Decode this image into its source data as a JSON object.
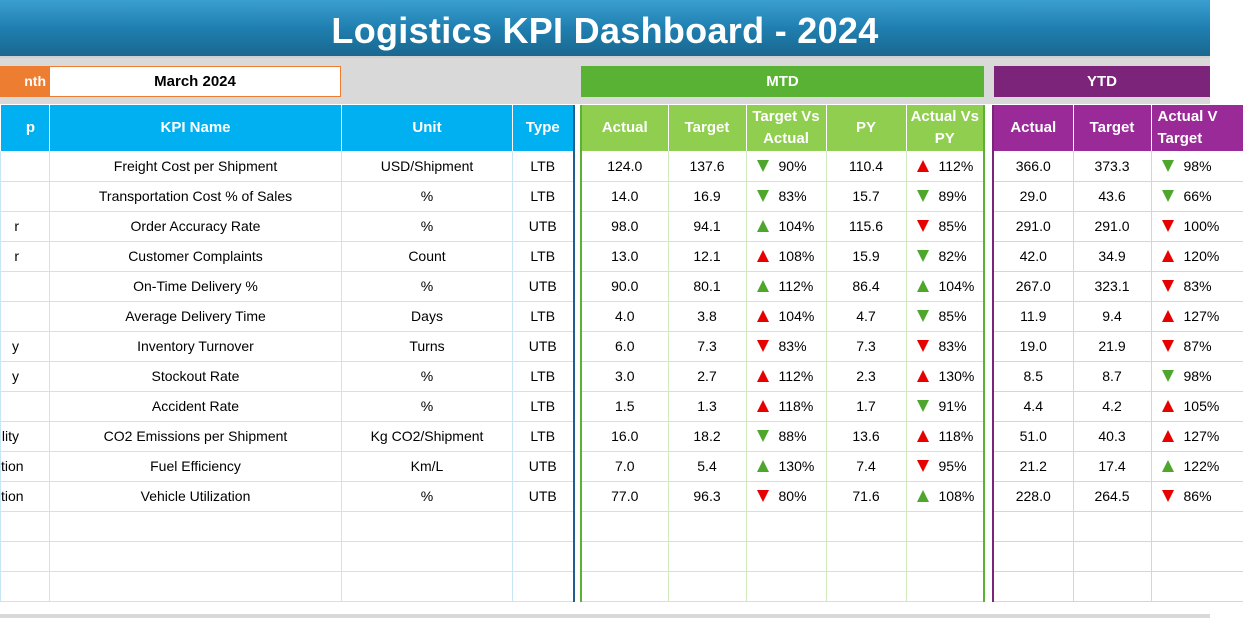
{
  "title": "Logistics KPI Dashboard - 2024",
  "month_selector": {
    "label": "nth",
    "value": "March 2024"
  },
  "mtd_label": "MTD",
  "ytd_label": "YTD",
  "colors": {
    "accent_blue": "#00b0f0",
    "mtd_green": "#59b233",
    "ytd_purple": "#7b2479",
    "month_orange": "#ed7d31",
    "up_red": "#e60000",
    "down_green": "#4ea72c"
  },
  "left_headers": {
    "group": "p",
    "kpi": "KPI Name",
    "unit": "Unit",
    "type": "Type"
  },
  "mtd_headers": {
    "actual": "Actual",
    "target": "Target",
    "tva": "Target Vs\nActual",
    "py": "PY",
    "apy": "Actual Vs\nPY"
  },
  "ytd_headers": {
    "actual": "Actual",
    "target": "Target",
    "tva": "Actual V\nTarget"
  },
  "rows": [
    {
      "group": "",
      "kpi": "Freight Cost per Shipment",
      "unit": "USD/Shipment",
      "type": "LTB",
      "mtd": {
        "actual": "124.0",
        "target": "137.6",
        "tva": "90%",
        "tva_icon": "down-green-icon",
        "py": "110.4",
        "apy": "112%",
        "apy_icon": "up-red-icon"
      },
      "ytd": {
        "actual": "366.0",
        "target": "373.3",
        "tva": "98%",
        "tva_icon": "down-green-icon"
      }
    },
    {
      "group": "",
      "kpi": "Transportation Cost % of Sales",
      "unit": "%",
      "type": "LTB",
      "mtd": {
        "actual": "14.0",
        "target": "16.9",
        "tva": "83%",
        "tva_icon": "down-green-icon",
        "py": "15.7",
        "apy": "89%",
        "apy_icon": "down-green-icon"
      },
      "ytd": {
        "actual": "29.0",
        "target": "43.6",
        "tva": "66%",
        "tva_icon": "down-green-icon"
      }
    },
    {
      "group": "r",
      "kpi": "Order Accuracy Rate",
      "unit": "%",
      "type": "UTB",
      "mtd": {
        "actual": "98.0",
        "target": "94.1",
        "tva": "104%",
        "tva_icon": "up-green-icon",
        "py": "115.6",
        "apy": "85%",
        "apy_icon": "down-red-icon"
      },
      "ytd": {
        "actual": "291.0",
        "target": "291.0",
        "tva": "100%",
        "tva_icon": "down-red-icon"
      }
    },
    {
      "group": "r",
      "kpi": "Customer Complaints",
      "unit": "Count",
      "type": "LTB",
      "mtd": {
        "actual": "13.0",
        "target": "12.1",
        "tva": "108%",
        "tva_icon": "up-red-icon",
        "py": "15.9",
        "apy": "82%",
        "apy_icon": "down-green-icon"
      },
      "ytd": {
        "actual": "42.0",
        "target": "34.9",
        "tva": "120%",
        "tva_icon": "up-red-icon"
      }
    },
    {
      "group": "",
      "kpi": "On-Time Delivery %",
      "unit": "%",
      "type": "UTB",
      "mtd": {
        "actual": "90.0",
        "target": "80.1",
        "tva": "112%",
        "tva_icon": "up-green-icon",
        "py": "86.4",
        "apy": "104%",
        "apy_icon": "up-green-icon"
      },
      "ytd": {
        "actual": "267.0",
        "target": "323.1",
        "tva": "83%",
        "tva_icon": "down-red-icon"
      }
    },
    {
      "group": "",
      "kpi": "Average Delivery Time",
      "unit": "Days",
      "type": "LTB",
      "mtd": {
        "actual": "4.0",
        "target": "3.8",
        "tva": "104%",
        "tva_icon": "up-red-icon",
        "py": "4.7",
        "apy": "85%",
        "apy_icon": "down-green-icon"
      },
      "ytd": {
        "actual": "11.9",
        "target": "9.4",
        "tva": "127%",
        "tva_icon": "up-red-icon"
      }
    },
    {
      "group": "y",
      "kpi": "Inventory Turnover",
      "unit": "Turns",
      "type": "UTB",
      "mtd": {
        "actual": "6.0",
        "target": "7.3",
        "tva": "83%",
        "tva_icon": "down-red-icon",
        "py": "7.3",
        "apy": "83%",
        "apy_icon": "down-red-icon"
      },
      "ytd": {
        "actual": "19.0",
        "target": "21.9",
        "tva": "87%",
        "tva_icon": "down-red-icon"
      }
    },
    {
      "group": "y",
      "kpi": "Stockout Rate",
      "unit": "%",
      "type": "LTB",
      "mtd": {
        "actual": "3.0",
        "target": "2.7",
        "tva": "112%",
        "tva_icon": "up-red-icon",
        "py": "2.3",
        "apy": "130%",
        "apy_icon": "up-red-icon"
      },
      "ytd": {
        "actual": "8.5",
        "target": "8.7",
        "tva": "98%",
        "tva_icon": "down-green-icon"
      }
    },
    {
      "group": "",
      "kpi": "Accident Rate",
      "unit": "%",
      "type": "LTB",
      "mtd": {
        "actual": "1.5",
        "target": "1.3",
        "tva": "118%",
        "tva_icon": "up-red-icon",
        "py": "1.7",
        "apy": "91%",
        "apy_icon": "down-green-icon"
      },
      "ytd": {
        "actual": "4.4",
        "target": "4.2",
        "tva": "105%",
        "tva_icon": "up-red-icon"
      }
    },
    {
      "group": "lity",
      "kpi": "CO2 Emissions per Shipment",
      "unit": "Kg CO2/Shipment",
      "type": "LTB",
      "mtd": {
        "actual": "16.0",
        "target": "18.2",
        "tva": "88%",
        "tva_icon": "down-green-icon",
        "py": "13.6",
        "apy": "118%",
        "apy_icon": "up-red-icon"
      },
      "ytd": {
        "actual": "51.0",
        "target": "40.3",
        "tva": "127%",
        "tva_icon": "up-red-icon"
      }
    },
    {
      "group": "tion",
      "kpi": "Fuel Efficiency",
      "unit": "Km/L",
      "type": "UTB",
      "mtd": {
        "actual": "7.0",
        "target": "5.4",
        "tva": "130%",
        "tva_icon": "up-green-icon",
        "py": "7.4",
        "apy": "95%",
        "apy_icon": "down-red-icon"
      },
      "ytd": {
        "actual": "21.2",
        "target": "17.4",
        "tva": "122%",
        "tva_icon": "up-green-icon"
      }
    },
    {
      "group": "tion",
      "kpi": "Vehicle Utilization",
      "unit": "%",
      "type": "UTB",
      "mtd": {
        "actual": "77.0",
        "target": "96.3",
        "tva": "80%",
        "tva_icon": "down-red-icon",
        "py": "71.6",
        "apy": "108%",
        "apy_icon": "up-green-icon"
      },
      "ytd": {
        "actual": "228.0",
        "target": "264.5",
        "tva": "86%",
        "tva_icon": "down-red-icon"
      }
    }
  ]
}
